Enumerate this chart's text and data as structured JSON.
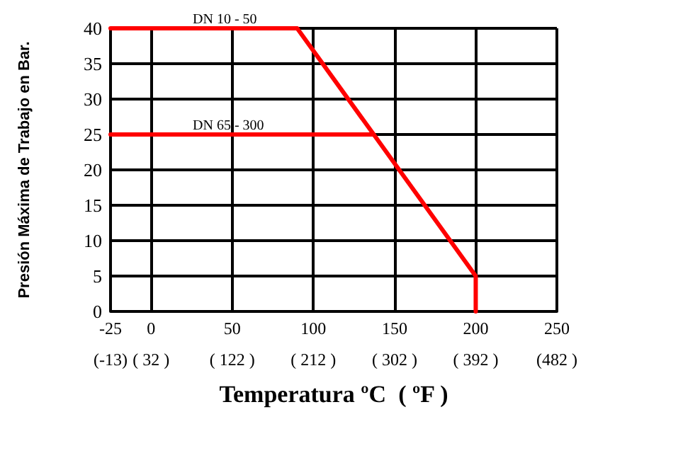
{
  "chart_data": {
    "type": "line",
    "xlabel": "Temperatura ºC  ( ºF )",
    "ylabel": "Presión Máxima de Trabajo en Bar.",
    "series": [
      {
        "name": "DN 10 - 50",
        "color": "#ff0000",
        "x": [
          -25,
          90,
          200,
          200
        ],
        "values": [
          40,
          40,
          5,
          0
        ]
      },
      {
        "name": "DN 65 - 300",
        "color": "#ff0000",
        "x": [
          -25,
          137
        ],
        "values": [
          25,
          25
        ]
      }
    ],
    "xlim": [
      -25,
      250
    ],
    "xticks": [
      -25,
      0,
      50,
      100,
      150,
      200,
      250
    ],
    "x2lim": [
      -13,
      482
    ],
    "x2ticks": [
      {
        "value": -13,
        "label": "(-13)"
      },
      {
        "value": 32,
        "label": "( 32 )"
      },
      {
        "value": 122,
        "label": "( 122 )"
      },
      {
        "value": 212,
        "label": "( 212 )"
      },
      {
        "value": 302,
        "label": "( 302 )"
      },
      {
        "value": 392,
        "label": "( 392 )"
      },
      {
        "value": 482,
        "label": "(482 )"
      }
    ],
    "ylim": [
      0,
      40
    ],
    "yticks": [
      0,
      5,
      10,
      15,
      20,
      25,
      30,
      35,
      40
    ],
    "grid": true,
    "legend": false,
    "marker": "none",
    "line_style": "solid"
  }
}
